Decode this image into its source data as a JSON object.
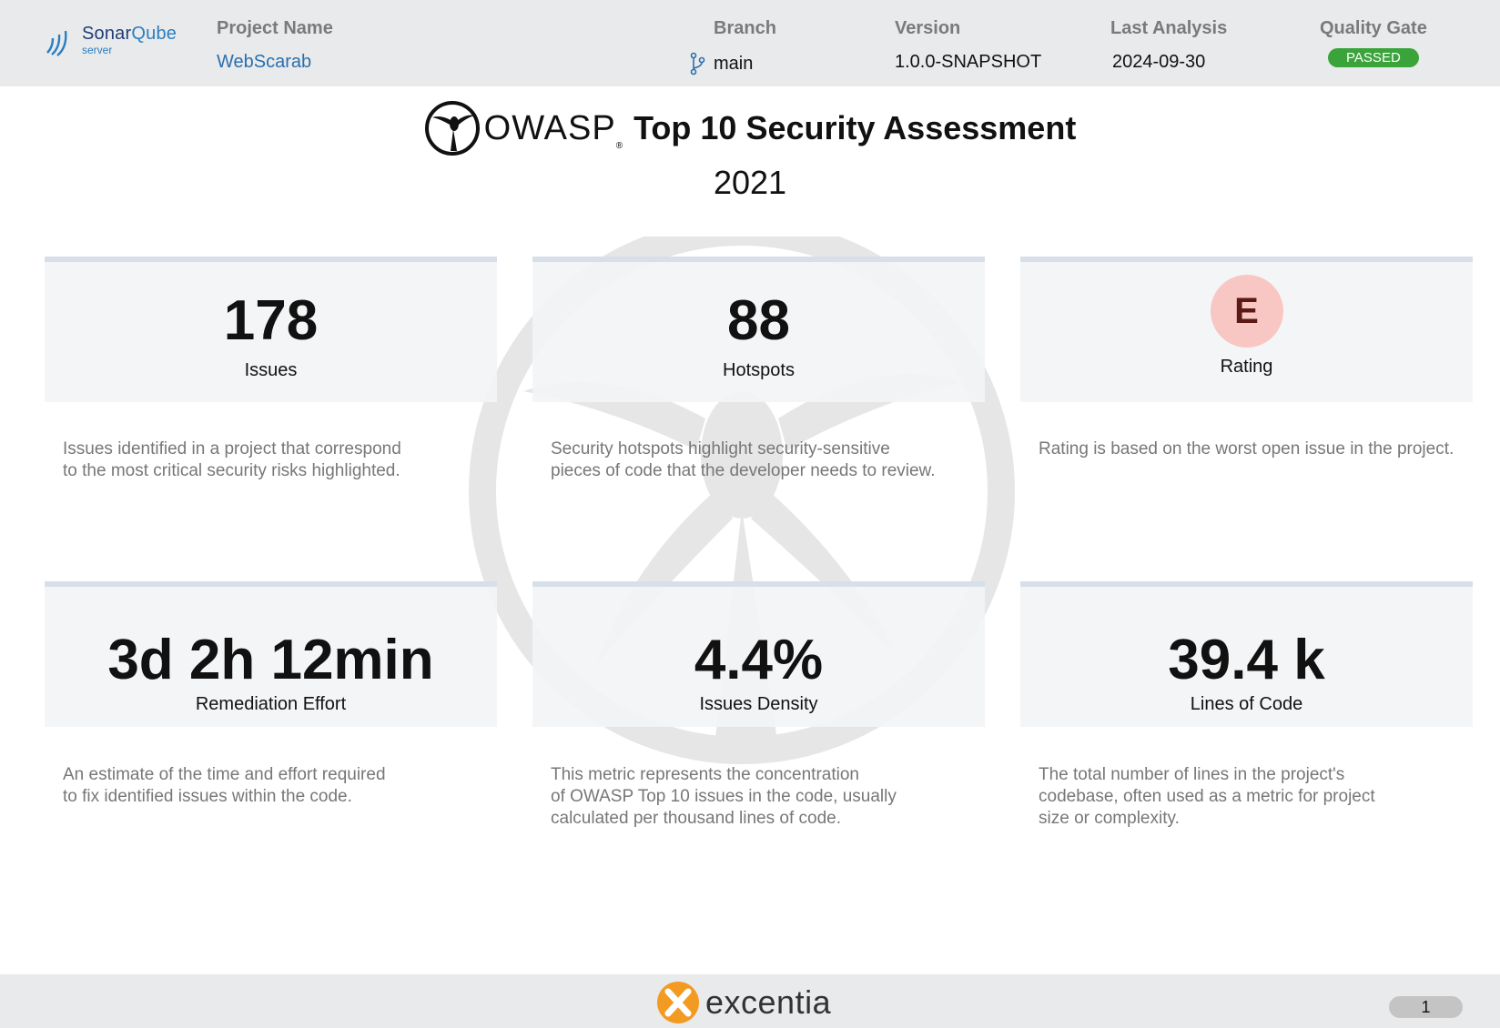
{
  "header": {
    "logo_brand": "Sonar",
    "logo_brand2": "Qube",
    "logo_sub": "server",
    "project_label": "Project Name",
    "project_value": "WebScarab",
    "branch_label": "Branch",
    "branch_value": "main",
    "version_label": "Version",
    "version_value": "1.0.0-SNAPSHOT",
    "analysis_label": "Last Analysis",
    "analysis_value": "2024-09-30",
    "gate_label": "Quality Gate",
    "gate_value": "PASSED"
  },
  "title": {
    "owasp": "OWASP",
    "reg": "®",
    "text": "Top 10 Security Assessment",
    "year": "2021"
  },
  "cards": [
    {
      "value": "178",
      "label": "Issues",
      "desc1": "Issues identified in a project that correspond",
      "desc2": "to the most critical security risks highlighted.",
      "desc3": ""
    },
    {
      "value": "88",
      "label": "Hotspots",
      "desc1": "Security hotspots highlight security-sensitive",
      "desc2": "pieces of code that the developer needs to review.",
      "desc3": ""
    },
    {
      "value": "E",
      "label": "Rating",
      "desc1": "Rating is based on the worst open issue in the project.",
      "desc2": "",
      "desc3": ""
    },
    {
      "value": "3d 2h 12min",
      "label": "Remediation Effort",
      "desc1": "An estimate of the time and effort required",
      "desc2": "to fix identified issues within the code.",
      "desc3": ""
    },
    {
      "value": "4.4%",
      "label": "Issues Density",
      "desc1": "This metric represents the concentration",
      "desc2": "of OWASP Top 10 issues in the code, usually",
      "desc3": "calculated per thousand lines of code."
    },
    {
      "value": "39.4 k",
      "label": "Lines of Code",
      "desc1": "The total number of lines in the project's",
      "desc2": "codebase, often used as a metric for project",
      "desc3": "size or complexity."
    }
  ],
  "colors": {
    "rating_bg": "#f8c7c3",
    "gate_passed": "#3aa33a",
    "link": "#2a6fae"
  },
  "footer": {
    "brand": "excentia",
    "page": "1"
  }
}
